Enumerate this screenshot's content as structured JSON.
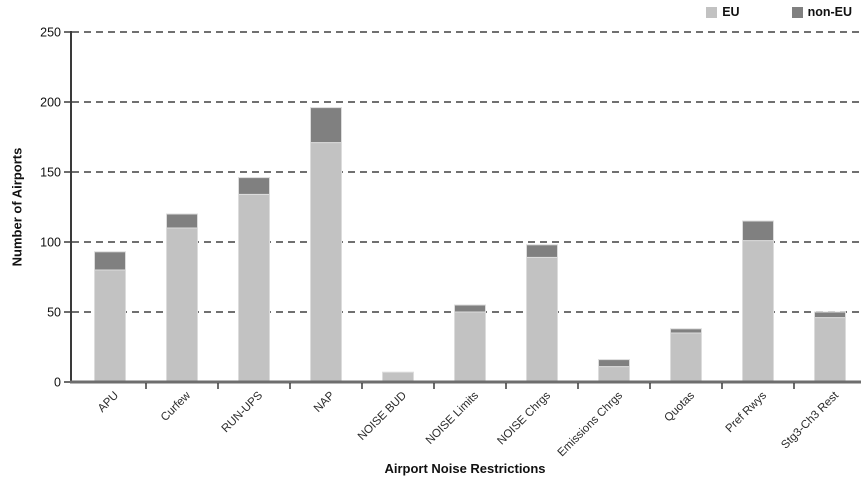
{
  "chart_data": {
    "type": "bar",
    "stacked": true,
    "title": "",
    "xlabel": "Airport Noise Restrictions",
    "ylabel": "Number of Airports",
    "categories": [
      "APU",
      "Curfew",
      "RUN-UPS",
      "NAP",
      "NOISE BUD",
      "NOISE Limits",
      "NOISE Chrgs",
      "Emissions Chrgs",
      "Quotas",
      "Pref Rwys",
      "Stg3-Ch3 Rest"
    ],
    "series": [
      {
        "name": "EU",
        "color": "#c2c2c2",
        "values": [
          80,
          110,
          134,
          171,
          7,
          50,
          89,
          11,
          35,
          101,
          46
        ]
      },
      {
        "name": "non-EU",
        "color": "#808080",
        "values": [
          13,
          10,
          12,
          25,
          0,
          5,
          9,
          5,
          3,
          14,
          4
        ]
      }
    ],
    "totals": [
      93,
      120,
      146,
      196,
      7,
      55,
      98,
      16,
      38,
      115,
      50
    ],
    "ylim": [
      0,
      250
    ],
    "yticks": [
      0,
      50,
      100,
      150,
      200,
      250
    ],
    "grid": "horizontal-dashed",
    "grid_color": "#1a1a1a",
    "axis_color": "#3a3a3a",
    "x_axis_color": "#6e6e6e",
    "bar_outline_color": "#dcdcdc",
    "legend_position": "top-right"
  }
}
